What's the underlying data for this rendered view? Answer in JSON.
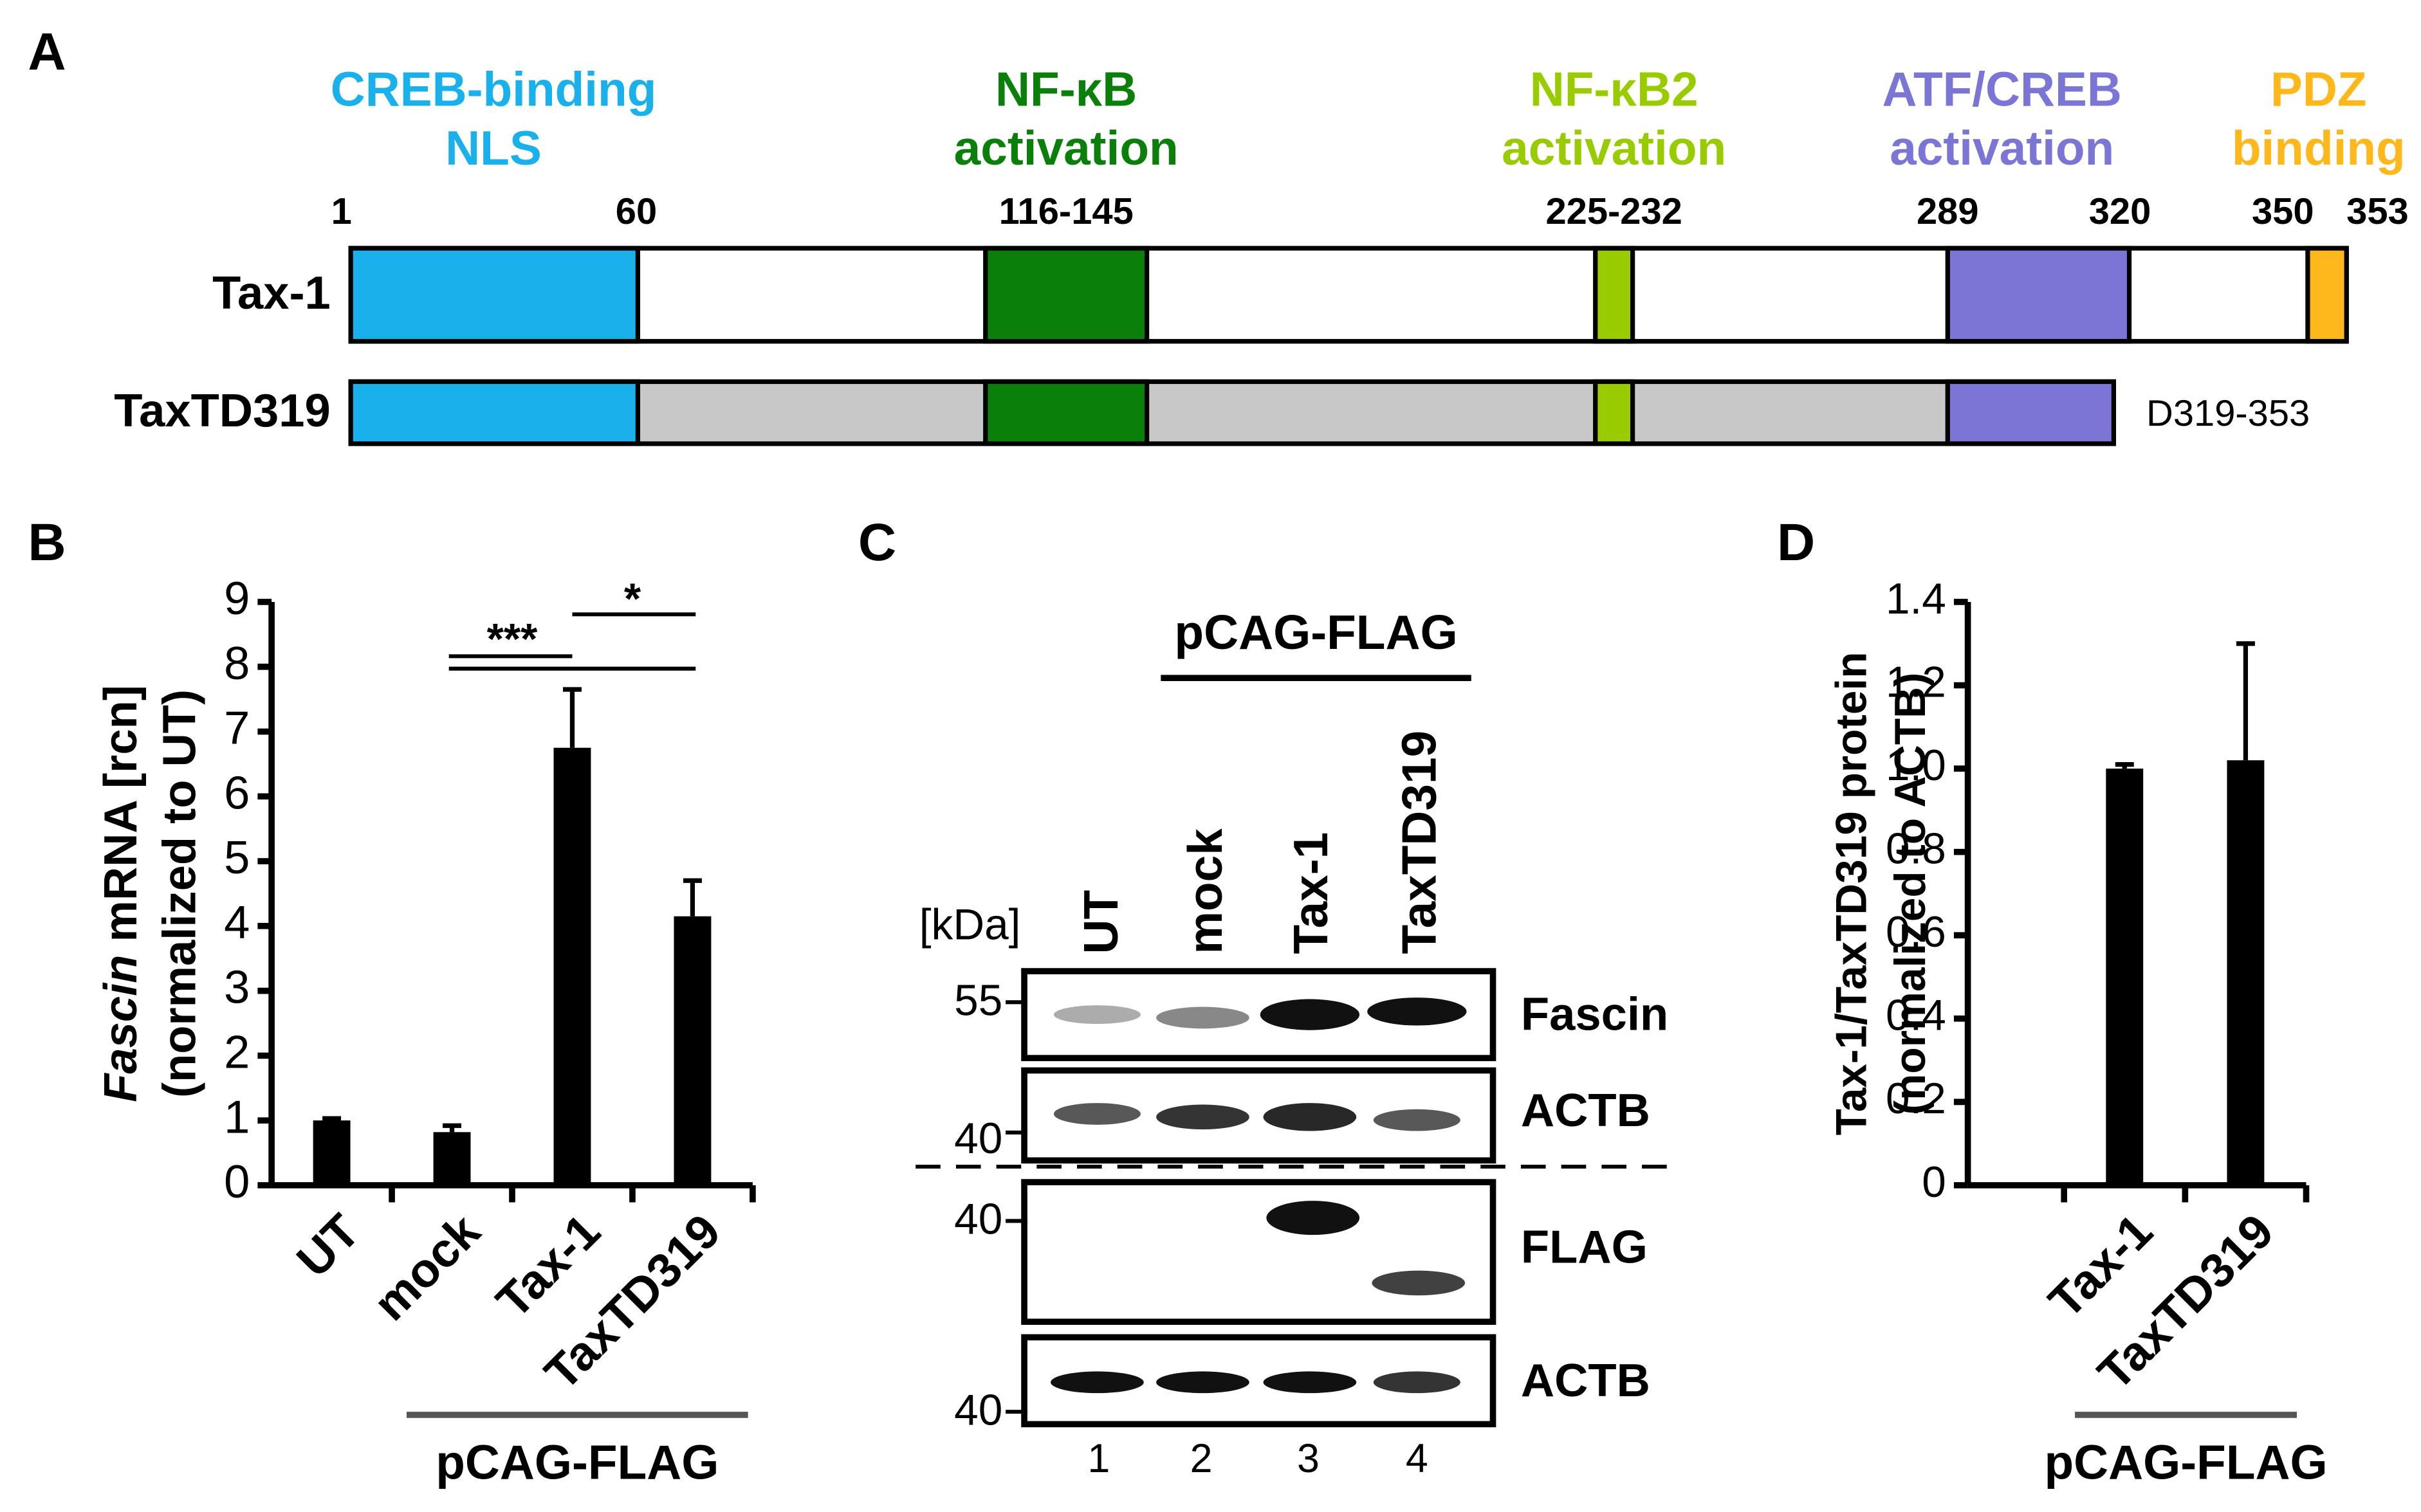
{
  "panel_a": {
    "letter": "A",
    "domains": [
      {
        "name": [
          "CREB-binding",
          "NLS"
        ]
      },
      {
        "name": [
          "NF-κB",
          "activation"
        ]
      },
      {
        "name": [
          "NF-κB2",
          "activation"
        ]
      },
      {
        "name": [
          "ATF/CREB",
          "activation"
        ]
      },
      {
        "name": [
          "PDZ",
          "binding"
        ]
      }
    ],
    "positions": [
      "1",
      "60",
      "116-145",
      "225-232",
      "289",
      "320",
      "350",
      "353"
    ],
    "constructs": [
      "Tax-1",
      "TaxTD319"
    ],
    "deletion": "D319-353"
  },
  "chart_data": [
    {
      "type": "bar",
      "letter": "B",
      "ylabel_italic": "Fascin",
      "ylabel": "mRNA [rcn]",
      "ylabel2": "(normalized to UT)",
      "categories": [
        "UT",
        "mock",
        "Tax-1",
        "TaxTD319"
      ],
      "values": [
        1.0,
        0.82,
        6.75,
        4.15
      ],
      "errors": [
        0.03,
        0.1,
        0.9,
        0.55
      ],
      "color": "#000000",
      "ylim": [
        0,
        9
      ],
      "yticks": [
        0,
        1,
        2,
        3,
        4,
        5,
        6,
        7,
        8,
        9
      ],
      "annotations": [
        "***",
        "*"
      ],
      "group_label": "pCAG-FLAG"
    },
    {
      "type": "bar",
      "letter": "D",
      "ylabel": "Tax-1/TaxTD319 protein",
      "ylabel2": "(normalized to ACTB)",
      "categories": [
        "Tax-1",
        "TaxTD319"
      ],
      "values": [
        1.0,
        1.02
      ],
      "errors": [
        0.01,
        0.28
      ],
      "color": "#000000",
      "ylim": [
        0,
        1.4
      ],
      "yticks": [
        0,
        0.2,
        0.4,
        0.6,
        0.8,
        {
          "value": 1,
          "label": "1.0"
        },
        1.2,
        1.4
      ],
      "group_label": "pCAG-FLAG"
    }
  ],
  "panel_c": {
    "letter": "C",
    "group_label": "pCAG-FLAG",
    "unit": "[kDa]",
    "lanes": [
      "UT",
      "mock",
      "Tax-1",
      "TaxTD319"
    ],
    "lane_numbers": [
      "1",
      "2",
      "3",
      "4"
    ],
    "markers": [
      "55",
      "40",
      "40",
      "40"
    ],
    "blots": [
      "Fascin",
      "ACTB",
      "FLAG",
      "ACTB"
    ]
  }
}
